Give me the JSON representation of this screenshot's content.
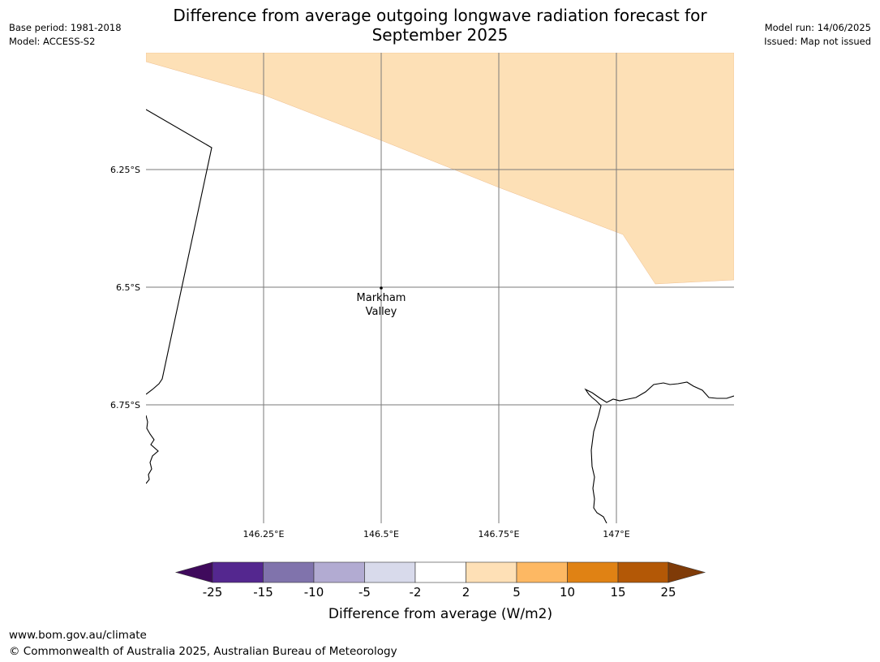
{
  "header": {
    "title_line1": "Difference from average outgoing longwave radiation forecast for",
    "title_line2": "September 2025",
    "base_period": "Base period: 1981-2018",
    "model": "Model: ACCESS-S2",
    "model_run": "Model run: 14/06/2025",
    "issued": "Issued: Map not issued"
  },
  "map": {
    "lat_labels": [
      "6.25°S",
      "6.5°S",
      "6.75°S"
    ],
    "lon_labels": [
      "146.25°E",
      "146.5°E",
      "146.75°E",
      "147°E"
    ],
    "place": {
      "name_line1": "Markham",
      "name_line2": "Valley"
    }
  },
  "colorbar": {
    "title": "Difference from average (W/m2)",
    "tick_labels": [
      "-25",
      "-15",
      "-10",
      "-5",
      "-2",
      "2",
      "5",
      "10",
      "15",
      "25"
    ],
    "colors": [
      "#3f0a5c",
      "#54278f",
      "#8073ac",
      "#b2abd2",
      "#d8daeb",
      "#ffffff",
      "#fee0b6",
      "#fdb863",
      "#e08214",
      "#b35806",
      "#7f3b08"
    ]
  },
  "footer": {
    "url": "www.bom.gov.au/climate",
    "copyright": "© Commonwealth of Australia 2025, Australian Bureau of Meteorology"
  }
}
